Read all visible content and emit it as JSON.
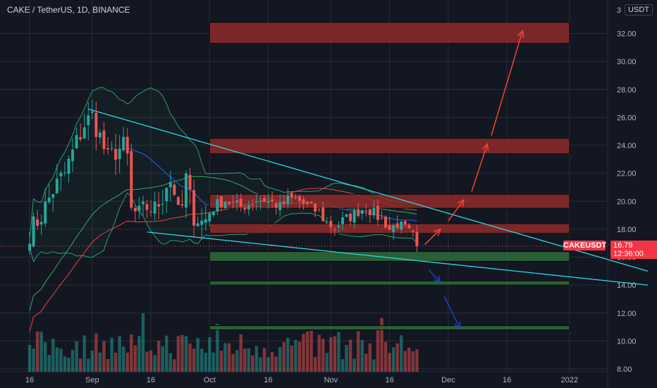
{
  "header": {
    "symbol": "CAKE / TetherUS",
    "interval": "1D",
    "exchange": "BINANCE",
    "sep": ", "
  },
  "currency_button": "USDT",
  "price_badge": {
    "symbol": "CAKEUSDT",
    "price": "16.79",
    "countdown": "12:36:00",
    "color": "#f23645"
  },
  "colors": {
    "background": "#131722",
    "grid": "#2a2e39",
    "up": "#26a69a",
    "down": "#ef5350",
    "bb": "#2e9e6f",
    "trendline": "#2ed6e0",
    "ma_red": "#e84545",
    "ma_blue": "#2962ff",
    "ma_green": "#3aa85b",
    "zone_red": "#8e2a2a",
    "zone_green": "#2e6b3a",
    "arrow_red": "#f44336",
    "arrow_blue": "#1e40c8"
  },
  "chart_data": {
    "type": "candlestick",
    "pair": "CAKE/USDT",
    "y_axis": {
      "ticks": [
        "8.00",
        "10.00",
        "12.00",
        "14.00",
        "16.00",
        "18.00",
        "20.00",
        "22.00",
        "24.00",
        "26.00",
        "28.00",
        "30.00",
        "32.00"
      ],
      "top_cut_label": "3",
      "range": [
        7.8,
        34.4
      ]
    },
    "x_axis": {
      "ticks": [
        "16",
        "Sep",
        "16",
        "Oct",
        "16",
        "Nov",
        "16",
        "Dec",
        "16",
        "2022"
      ],
      "tick_days": [
        0,
        16,
        31,
        46,
        61,
        77,
        92,
        107,
        122,
        138
      ]
    },
    "last_price": 16.79,
    "resistance_zones": [
      {
        "low": 31.3,
        "high": 32.8
      },
      {
        "low": 23.4,
        "high": 24.5
      },
      {
        "low": 19.5,
        "high": 20.5
      },
      {
        "low": 17.7,
        "high": 18.4
      }
    ],
    "support_zones": [
      {
        "low": 15.7,
        "high": 16.4
      },
      {
        "low": 14.0,
        "high": 14.3
      },
      {
        "low": 10.8,
        "high": 11.1
      }
    ],
    "zone_day_range": [
      46,
      138
    ],
    "trendlines": [
      {
        "from": [
          15,
          26.6
        ],
        "to": [
          158,
          15.0
        ]
      },
      {
        "from": [
          30,
          17.8
        ],
        "to": [
          158,
          14.0
        ]
      }
    ],
    "bullish_arrows": [
      {
        "from": [
          101,
          16.9
        ],
        "to": [
          105,
          18.0
        ]
      },
      {
        "from": [
          107,
          18.6
        ],
        "to": [
          111,
          20.1
        ]
      },
      {
        "from": [
          113,
          20.7
        ],
        "to": [
          117,
          24.1
        ]
      },
      {
        "from": [
          118,
          24.7
        ],
        "to": [
          126,
          32.2
        ]
      }
    ],
    "bearish_arrows": [
      {
        "from": [
          102,
          15.1
        ],
        "to": [
          105,
          14.2
        ]
      },
      {
        "from": [
          106,
          13.2
        ],
        "to": [
          110,
          10.9
        ]
      }
    ],
    "close_path": [
      [
        0,
        17.8
      ],
      [
        3,
        19.0
      ],
      [
        6,
        20.8
      ],
      [
        9,
        22.0
      ],
      [
        12,
        24.2
      ],
      [
        14,
        25.5
      ],
      [
        16,
        26.1
      ],
      [
        18,
        24.6
      ],
      [
        20,
        23.0
      ],
      [
        22,
        23.6
      ],
      [
        24,
        23.9
      ],
      [
        25,
        23.1
      ],
      [
        26,
        19.3
      ],
      [
        28,
        19.0
      ],
      [
        30,
        19.6
      ],
      [
        32,
        19.4
      ],
      [
        34,
        20.4
      ],
      [
        35,
        21.3
      ],
      [
        36,
        21.5
      ],
      [
        37,
        20.8
      ],
      [
        38,
        19.0
      ],
      [
        39,
        19.6
      ],
      [
        40,
        21.6
      ],
      [
        41,
        20.2
      ],
      [
        42,
        19.0
      ],
      [
        43,
        18.8
      ],
      [
        44,
        18.5
      ],
      [
        45,
        18.7
      ],
      [
        46,
        19.2
      ],
      [
        48,
        19.8
      ],
      [
        50,
        20.1
      ],
      [
        52,
        19.8
      ],
      [
        54,
        19.6
      ],
      [
        56,
        19.8
      ],
      [
        58,
        20.1
      ],
      [
        60,
        20.1
      ],
      [
        62,
        19.9
      ],
      [
        64,
        19.6
      ],
      [
        66,
        20.1
      ],
      [
        68,
        20.2
      ],
      [
        70,
        19.8
      ],
      [
        72,
        19.5
      ],
      [
        74,
        19.2
      ],
      [
        76,
        18.4
      ],
      [
        78,
        18.1
      ],
      [
        80,
        18.6
      ],
      [
        82,
        18.9
      ],
      [
        84,
        19.3
      ],
      [
        86,
        19.6
      ],
      [
        88,
        19.1
      ],
      [
        90,
        18.7
      ],
      [
        91,
        18.4
      ],
      [
        92,
        18.0
      ],
      [
        94,
        18.4
      ],
      [
        96,
        18.0
      ],
      [
        98,
        17.5
      ],
      [
        99,
        16.8
      ]
    ],
    "volume_max": 12
  }
}
